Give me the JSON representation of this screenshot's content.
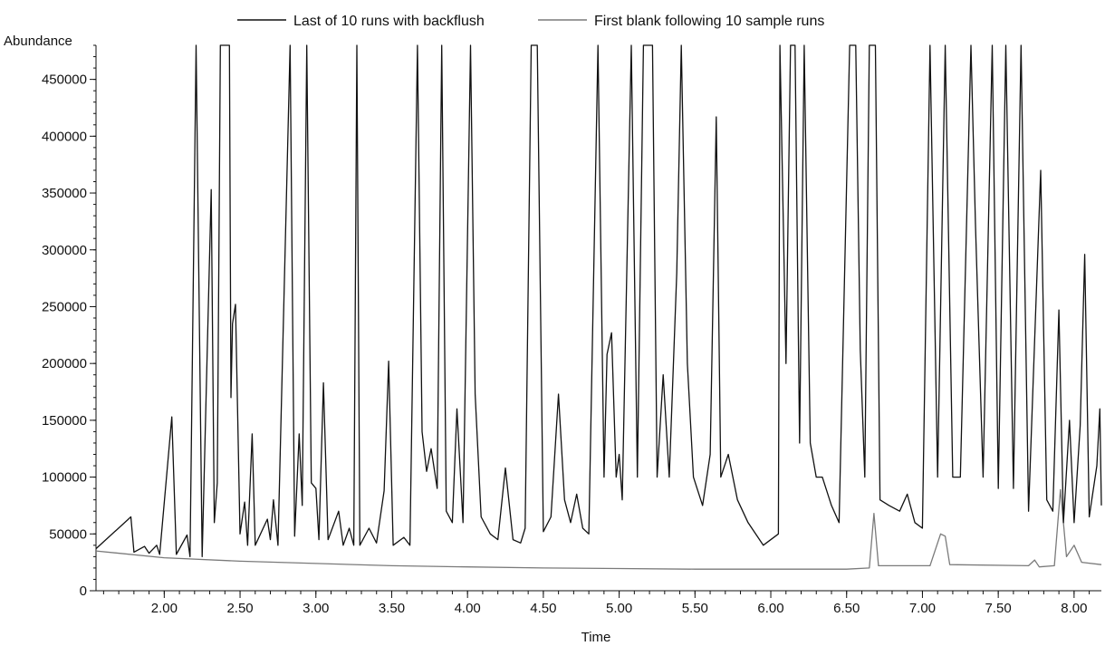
{
  "chart_data": {
    "type": "line",
    "xlabel": "Time",
    "ylabel": "Abundance",
    "xlim": [
      1.55,
      8.18
    ],
    "ylim": [
      0,
      480000
    ],
    "x_ticks": [
      "2.00",
      "2.50",
      "3.00",
      "3.50",
      "4.00",
      "4.50",
      "5.00",
      "5.50",
      "6.00",
      "6.50",
      "7.00",
      "7.50",
      "8.00"
    ],
    "y_ticks": [
      "0",
      "50000",
      "100000",
      "150000",
      "200000",
      "250000",
      "300000",
      "350000",
      "400000",
      "450000"
    ],
    "legend_position": "top",
    "series": [
      {
        "name": "Last of 10 runs with backflush",
        "color": "#111111",
        "points": [
          [
            1.55,
            37000
          ],
          [
            1.78,
            65000
          ],
          [
            1.8,
            34000
          ],
          [
            1.87,
            39000
          ],
          [
            1.9,
            33000
          ],
          [
            1.95,
            40000
          ],
          [
            1.97,
            32000
          ],
          [
            2.05,
            153000
          ],
          [
            2.08,
            32000
          ],
          [
            2.15,
            49000
          ],
          [
            2.17,
            30000
          ],
          [
            2.21,
            480000
          ],
          [
            2.25,
            30000
          ],
          [
            2.31,
            353000
          ],
          [
            2.33,
            60000
          ],
          [
            2.35,
            95000
          ],
          [
            2.37,
            480000
          ],
          [
            2.4,
            480000
          ],
          [
            2.43,
            480000
          ],
          [
            2.44,
            170000
          ],
          [
            2.45,
            235000
          ],
          [
            2.47,
            252000
          ],
          [
            2.5,
            50000
          ],
          [
            2.53,
            78000
          ],
          [
            2.55,
            40000
          ],
          [
            2.58,
            138000
          ],
          [
            2.6,
            40000
          ],
          [
            2.68,
            63000
          ],
          [
            2.7,
            45000
          ],
          [
            2.72,
            80000
          ],
          [
            2.75,
            40000
          ],
          [
            2.83,
            480000
          ],
          [
            2.86,
            48000
          ],
          [
            2.89,
            138000
          ],
          [
            2.91,
            75000
          ],
          [
            2.94,
            480000
          ],
          [
            2.97,
            95000
          ],
          [
            3.0,
            90000
          ],
          [
            3.02,
            45000
          ],
          [
            3.05,
            183000
          ],
          [
            3.08,
            45000
          ],
          [
            3.15,
            70000
          ],
          [
            3.18,
            40000
          ],
          [
            3.22,
            55000
          ],
          [
            3.25,
            40000
          ],
          [
            3.27,
            480000
          ],
          [
            3.29,
            40000
          ],
          [
            3.35,
            55000
          ],
          [
            3.4,
            42000
          ],
          [
            3.45,
            88000
          ],
          [
            3.48,
            202000
          ],
          [
            3.51,
            40000
          ],
          [
            3.58,
            47000
          ],
          [
            3.62,
            40000
          ],
          [
            3.67,
            480000
          ],
          [
            3.7,
            140000
          ],
          [
            3.73,
            105000
          ],
          [
            3.76,
            125000
          ],
          [
            3.8,
            90000
          ],
          [
            3.83,
            480000
          ],
          [
            3.86,
            70000
          ],
          [
            3.9,
            60000
          ],
          [
            3.93,
            160000
          ],
          [
            3.97,
            60000
          ],
          [
            4.02,
            480000
          ],
          [
            4.05,
            173000
          ],
          [
            4.09,
            65000
          ],
          [
            4.15,
            50000
          ],
          [
            4.2,
            45000
          ],
          [
            4.25,
            108000
          ],
          [
            4.3,
            45000
          ],
          [
            4.35,
            42000
          ],
          [
            4.38,
            55000
          ],
          [
            4.42,
            480000
          ],
          [
            4.46,
            480000
          ],
          [
            4.5,
            52000
          ],
          [
            4.55,
            65000
          ],
          [
            4.6,
            173000
          ],
          [
            4.64,
            80000
          ],
          [
            4.68,
            60000
          ],
          [
            4.72,
            85000
          ],
          [
            4.76,
            55000
          ],
          [
            4.8,
            50000
          ],
          [
            4.86,
            480000
          ],
          [
            4.9,
            100000
          ],
          [
            4.92,
            208000
          ],
          [
            4.95,
            227000
          ],
          [
            4.98,
            100000
          ],
          [
            5.0,
            120000
          ],
          [
            5.02,
            80000
          ],
          [
            5.08,
            480000
          ],
          [
            5.12,
            100000
          ],
          [
            5.16,
            480000
          ],
          [
            5.19,
            480000
          ],
          [
            5.22,
            480000
          ],
          [
            5.25,
            100000
          ],
          [
            5.29,
            190000
          ],
          [
            5.33,
            100000
          ],
          [
            5.38,
            280000
          ],
          [
            5.41,
            480000
          ],
          [
            5.45,
            200000
          ],
          [
            5.49,
            100000
          ],
          [
            5.55,
            75000
          ],
          [
            5.6,
            120000
          ],
          [
            5.64,
            417000
          ],
          [
            5.67,
            100000
          ],
          [
            5.72,
            120000
          ],
          [
            5.78,
            80000
          ],
          [
            5.85,
            60000
          ],
          [
            5.95,
            40000
          ],
          [
            6.05,
            50000
          ],
          [
            6.06,
            480000
          ],
          [
            6.1,
            200000
          ],
          [
            6.13,
            480000
          ],
          [
            6.16,
            480000
          ],
          [
            6.19,
            130000
          ],
          [
            6.22,
            480000
          ],
          [
            6.26,
            130000
          ],
          [
            6.3,
            100000
          ],
          [
            6.34,
            100000
          ],
          [
            6.4,
            75000
          ],
          [
            6.45,
            60000
          ],
          [
            6.52,
            480000
          ],
          [
            6.56,
            480000
          ],
          [
            6.59,
            212000
          ],
          [
            6.62,
            100000
          ],
          [
            6.65,
            480000
          ],
          [
            6.69,
            480000
          ],
          [
            6.72,
            80000
          ],
          [
            6.78,
            75000
          ],
          [
            6.85,
            70000
          ],
          [
            6.9,
            85000
          ],
          [
            6.95,
            60000
          ],
          [
            7.0,
            55000
          ],
          [
            7.05,
            480000
          ],
          [
            7.1,
            100000
          ],
          [
            7.15,
            480000
          ],
          [
            7.2,
            100000
          ],
          [
            7.25,
            100000
          ],
          [
            7.32,
            480000
          ],
          [
            7.35,
            322000
          ],
          [
            7.4,
            100000
          ],
          [
            7.46,
            480000
          ],
          [
            7.5,
            90000
          ],
          [
            7.55,
            480000
          ],
          [
            7.6,
            90000
          ],
          [
            7.65,
            480000
          ],
          [
            7.7,
            70000
          ],
          [
            7.78,
            370000
          ],
          [
            7.82,
            80000
          ],
          [
            7.86,
            70000
          ],
          [
            7.9,
            247000
          ],
          [
            7.93,
            60000
          ],
          [
            7.97,
            150000
          ],
          [
            8.0,
            60000
          ],
          [
            8.04,
            145000
          ],
          [
            8.07,
            296000
          ],
          [
            8.1,
            65000
          ],
          [
            8.15,
            110000
          ],
          [
            8.17,
            160000
          ],
          [
            8.18,
            75000
          ]
        ]
      },
      {
        "name": "First blank following 10 sample runs",
        "color": "#7a7a7a",
        "points": [
          [
            1.55,
            35000
          ],
          [
            2.0,
            29000
          ],
          [
            2.5,
            26000
          ],
          [
            3.0,
            24000
          ],
          [
            3.5,
            22000
          ],
          [
            4.0,
            21000
          ],
          [
            4.5,
            20000
          ],
          [
            5.0,
            19500
          ],
          [
            5.5,
            19000
          ],
          [
            6.0,
            19000
          ],
          [
            6.5,
            19000
          ],
          [
            6.65,
            20000
          ],
          [
            6.68,
            68000
          ],
          [
            6.71,
            22000
          ],
          [
            7.05,
            22000
          ],
          [
            7.12,
            50000
          ],
          [
            7.15,
            48000
          ],
          [
            7.18,
            23000
          ],
          [
            7.7,
            22000
          ],
          [
            7.74,
            27000
          ],
          [
            7.77,
            21000
          ],
          [
            7.87,
            22000
          ],
          [
            7.91,
            89000
          ],
          [
            7.95,
            30000
          ],
          [
            8.0,
            40000
          ],
          [
            8.05,
            25000
          ],
          [
            8.18,
            23000
          ]
        ]
      }
    ]
  }
}
